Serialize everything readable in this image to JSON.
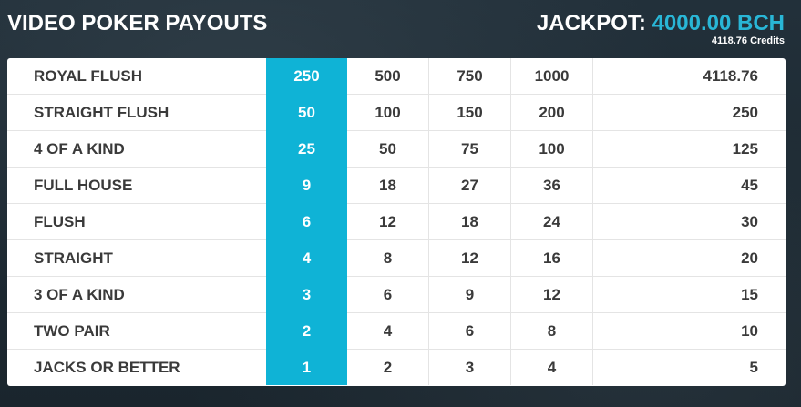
{
  "header": {
    "title": "VIDEO POKER PAYOUTS",
    "jackpot_label": "JACKPOT:",
    "jackpot_value": "4000.00 BCH",
    "jackpot_credits": "4118.76 Credits"
  },
  "paytable": {
    "active_column": 1,
    "rows": [
      {
        "hand": "ROYAL FLUSH",
        "c1": "250",
        "c2": "500",
        "c3": "750",
        "c4": "1000",
        "c5": "4118.76"
      },
      {
        "hand": "STRAIGHT FLUSH",
        "c1": "50",
        "c2": "100",
        "c3": "150",
        "c4": "200",
        "c5": "250"
      },
      {
        "hand": "4 OF A KIND",
        "c1": "25",
        "c2": "50",
        "c3": "75",
        "c4": "100",
        "c5": "125"
      },
      {
        "hand": "FULL HOUSE",
        "c1": "9",
        "c2": "18",
        "c3": "27",
        "c4": "36",
        "c5": "45"
      },
      {
        "hand": "FLUSH",
        "c1": "6",
        "c2": "12",
        "c3": "18",
        "c4": "24",
        "c5": "30"
      },
      {
        "hand": "STRAIGHT",
        "c1": "4",
        "c2": "8",
        "c3": "12",
        "c4": "16",
        "c5": "20"
      },
      {
        "hand": "3 OF A KIND",
        "c1": "3",
        "c2": "6",
        "c3": "9",
        "c4": "12",
        "c5": "15"
      },
      {
        "hand": "TWO PAIR",
        "c1": "2",
        "c2": "4",
        "c3": "6",
        "c4": "8",
        "c5": "10"
      },
      {
        "hand": "JACKS OR BETTER",
        "c1": "1",
        "c2": "2",
        "c3": "3",
        "c4": "4",
        "c5": "5"
      }
    ]
  },
  "colors": {
    "accent": "#0fb3d6",
    "jackpot_text": "#29b6d6",
    "background": "#1d2a33",
    "panel": "#ffffff"
  }
}
